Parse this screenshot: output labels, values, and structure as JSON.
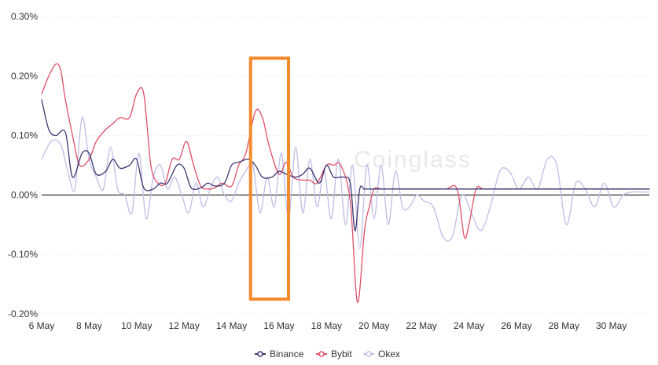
{
  "chart_data": {
    "type": "line",
    "watermark": "Coinglass",
    "y_tick_labels": [
      "0.30%",
      "0.20%",
      "0.10%",
      "0.00%",
      "-0.10%",
      "-0.20%"
    ],
    "y_ticks": [
      0.3,
      0.2,
      0.1,
      0.0,
      -0.1,
      -0.2
    ],
    "ylim": [
      -0.2,
      0.3
    ],
    "x_tick_labels": [
      "6 May",
      "8 May",
      "10 May",
      "12 May",
      "14 May",
      "16 May",
      "18 May",
      "20 May",
      "22 May",
      "24 May",
      "26 May",
      "28 May",
      "30 May"
    ],
    "x_ticks": [
      6,
      8,
      10,
      12,
      14,
      16,
      18,
      20,
      22,
      24,
      26,
      28,
      30
    ],
    "xlim": [
      6,
      31.6
    ],
    "highlight": {
      "x_range": [
        14.8,
        16.4
      ],
      "y_range": [
        -0.175,
        0.23
      ],
      "color": "#f58a2c"
    },
    "series": [
      {
        "name": "Binance",
        "color": "#3b3770",
        "x": [
          6.0,
          6.3,
          6.6,
          7.0,
          7.3,
          7.7,
          8.0,
          8.3,
          8.7,
          9.0,
          9.3,
          9.7,
          10.0,
          10.3,
          10.7,
          11.0,
          11.3,
          11.7,
          12.0,
          12.3,
          12.7,
          13.0,
          13.3,
          13.7,
          14.0,
          14.3,
          14.7,
          15.0,
          15.3,
          15.7,
          16.0,
          16.3,
          16.7,
          17.0,
          17.3,
          17.7,
          18.0,
          18.3,
          18.7,
          19.0,
          19.2,
          19.4,
          19.6,
          20.0,
          24.0,
          31.6
        ],
        "values": [
          0.16,
          0.11,
          0.1,
          0.105,
          0.03,
          0.07,
          0.07,
          0.035,
          0.04,
          0.06,
          0.045,
          0.05,
          0.06,
          0.012,
          0.01,
          0.02,
          0.02,
          0.05,
          0.045,
          0.012,
          0.012,
          0.02,
          0.015,
          0.02,
          0.05,
          0.055,
          0.06,
          0.05,
          0.03,
          0.03,
          0.04,
          0.035,
          0.03,
          0.035,
          0.045,
          0.02,
          0.05,
          0.03,
          0.03,
          0.02,
          -0.06,
          0.01,
          0.01,
          0.01,
          0.01,
          0.01
        ]
      },
      {
        "name": "Bybit",
        "color": "#e04f68",
        "x": [
          6.0,
          6.3,
          6.6,
          6.8,
          7.0,
          7.3,
          7.6,
          8.0,
          8.3,
          8.7,
          9.0,
          9.3,
          9.7,
          10.0,
          10.3,
          10.6,
          10.9,
          11.2,
          11.5,
          11.8,
          12.1,
          12.4,
          12.7,
          13.0,
          13.3,
          13.6,
          14.0,
          14.3,
          14.6,
          15.0,
          15.3,
          15.6,
          16.0,
          16.3,
          16.6,
          17.0,
          17.3,
          17.6,
          18.0,
          18.3,
          18.6,
          19.0,
          19.3,
          19.6,
          19.8,
          20.0,
          20.3,
          20.6,
          21.0,
          22.0,
          23.0,
          23.5,
          23.8,
          24.0,
          24.3,
          24.6,
          25.0,
          31.6
        ],
        "values": [
          0.17,
          0.2,
          0.22,
          0.21,
          0.16,
          0.1,
          0.05,
          0.06,
          0.09,
          0.11,
          0.12,
          0.13,
          0.13,
          0.17,
          0.17,
          0.05,
          0.02,
          0.02,
          0.06,
          0.06,
          0.09,
          0.05,
          0.015,
          0.01,
          0.012,
          0.02,
          0.015,
          0.05,
          0.07,
          0.14,
          0.13,
          0.08,
          0.035,
          0.055,
          0.03,
          0.025,
          0.025,
          0.02,
          0.05,
          0.05,
          0.05,
          -0.01,
          -0.18,
          -0.06,
          -0.02,
          0.01,
          0.01,
          0.01,
          0.01,
          0.01,
          0.01,
          0.01,
          -0.07,
          -0.05,
          0.01,
          0.01,
          0.01,
          0.01
        ]
      },
      {
        "name": "Okex",
        "color": "#c0bde6",
        "x": [
          6.0,
          6.4,
          6.8,
          7.1,
          7.4,
          7.7,
          8.0,
          8.3,
          8.6,
          8.9,
          9.2,
          9.5,
          9.8,
          10.1,
          10.4,
          10.7,
          11.0,
          11.3,
          11.6,
          11.9,
          12.2,
          12.5,
          12.8,
          13.1,
          13.4,
          13.7,
          14.0,
          14.3,
          14.6,
          14.9,
          15.2,
          15.5,
          15.8,
          16.1,
          16.4,
          16.7,
          17.0,
          17.3,
          17.6,
          17.9,
          18.2,
          18.5,
          18.8,
          19.1,
          19.4,
          19.7,
          20.0,
          20.3,
          20.6,
          20.9,
          21.2,
          21.5,
          21.8,
          22.1,
          22.5,
          22.9,
          23.3,
          23.7,
          24.1,
          24.5,
          24.9,
          25.3,
          25.7,
          26.1,
          26.5,
          26.9,
          27.3,
          27.7,
          28.1,
          28.5,
          28.9,
          29.3,
          29.7,
          30.1,
          30.5,
          30.9,
          31.3,
          31.6
        ],
        "values": [
          0.06,
          0.09,
          0.085,
          0.04,
          0.01,
          0.13,
          0.06,
          0.03,
          0.01,
          0.08,
          0.01,
          0.0,
          -0.03,
          0.07,
          -0.04,
          0.03,
          0.05,
          0.01,
          0.03,
          0.0,
          -0.03,
          0.02,
          -0.02,
          0.01,
          0.03,
          0.0,
          -0.01,
          0.02,
          0.04,
          0.05,
          -0.03,
          0.03,
          -0.02,
          0.07,
          -0.04,
          0.08,
          -0.03,
          0.06,
          -0.02,
          0.04,
          -0.04,
          0.06,
          -0.05,
          0.05,
          -0.09,
          0.05,
          -0.04,
          0.05,
          -0.05,
          0.04,
          -0.02,
          -0.02,
          0.0,
          -0.01,
          -0.02,
          -0.07,
          -0.07,
          0.0,
          -0.03,
          -0.06,
          -0.02,
          0.04,
          0.04,
          0.01,
          0.03,
          0.01,
          0.06,
          0.05,
          -0.05,
          0.02,
          0.01,
          -0.02,
          0.02,
          -0.02,
          0.0,
          0.005,
          0.005,
          0.005
        ]
      }
    ],
    "legend_position": "bottom-center",
    "grid": true
  }
}
